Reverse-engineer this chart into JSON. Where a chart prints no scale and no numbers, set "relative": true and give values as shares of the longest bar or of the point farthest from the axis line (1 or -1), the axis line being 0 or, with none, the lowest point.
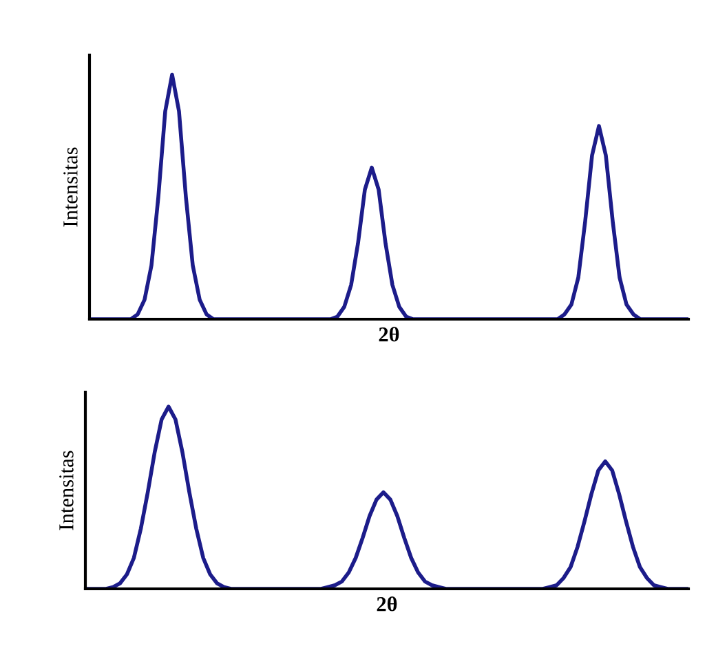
{
  "chart_data": [
    {
      "type": "line",
      "relative": true,
      "xlabel": "2θ",
      "ylabel": "Intensitas",
      "tick_labels": false,
      "grid": false,
      "legend": false,
      "marker": "none",
      "line_style": "solid",
      "categories": [
        null,
        null,
        null,
        null,
        null,
        null,
        null,
        null,
        null,
        null,
        null,
        null,
        null,
        null,
        null,
        null,
        null,
        null,
        null,
        null,
        null,
        null,
        null,
        null,
        null,
        null,
        null,
        null,
        null,
        null,
        null,
        null,
        null,
        null,
        null,
        null,
        null,
        null,
        null,
        null,
        null,
        null,
        null,
        null,
        null,
        null,
        null,
        null,
        null,
        null,
        null,
        null,
        null,
        null,
        null,
        null,
        null,
        null,
        null,
        null,
        null,
        null,
        null,
        null,
        null,
        null,
        null,
        null,
        null,
        null,
        null,
        null,
        null,
        null,
        null,
        null,
        null,
        null,
        null,
        null,
        null,
        null,
        null,
        null,
        null,
        null,
        null,
        null
      ],
      "series": [
        {
          "color": "#1c1c8a",
          "values": [
            0,
            0,
            0,
            0,
            0,
            0,
            0,
            0.02,
            0.08,
            0.22,
            0.5,
            0.85,
            1,
            0.85,
            0.5,
            0.22,
            0.08,
            0.02,
            0,
            0,
            0,
            0,
            0,
            0,
            0,
            0,
            0,
            0,
            0,
            0,
            0,
            0,
            0,
            0,
            0,
            0,
            0.01,
            0.05,
            0.14,
            0.31,
            0.53,
            0.62,
            0.53,
            0.31,
            0.14,
            0.05,
            0.01,
            0,
            0,
            0,
            0,
            0,
            0,
            0,
            0,
            0,
            0,
            0,
            0,
            0,
            0,
            0,
            0,
            0,
            0,
            0,
            0,
            0,
            0,
            0.02,
            0.06,
            0.17,
            0.4,
            0.67,
            0.79,
            0.67,
            0.4,
            0.17,
            0.06,
            0.02,
            0,
            0,
            0,
            0,
            0,
            0,
            0,
            0
          ]
        }
      ]
    },
    {
      "type": "line",
      "relative": true,
      "xlabel": "2θ",
      "ylabel": "Intensitas",
      "tick_labels": false,
      "grid": false,
      "legend": false,
      "marker": "none",
      "line_style": "solid",
      "categories": [
        null,
        null,
        null,
        null,
        null,
        null,
        null,
        null,
        null,
        null,
        null,
        null,
        null,
        null,
        null,
        null,
        null,
        null,
        null,
        null,
        null,
        null,
        null,
        null,
        null,
        null,
        null,
        null,
        null,
        null,
        null,
        null,
        null,
        null,
        null,
        null,
        null,
        null,
        null,
        null,
        null,
        null,
        null,
        null,
        null,
        null,
        null,
        null,
        null,
        null,
        null,
        null,
        null,
        null,
        null,
        null,
        null,
        null,
        null,
        null,
        null,
        null,
        null,
        null,
        null,
        null,
        null,
        null,
        null,
        null,
        null,
        null,
        null,
        null,
        null,
        null,
        null,
        null,
        null,
        null,
        null,
        null,
        null,
        null,
        null,
        null,
        null,
        null
      ],
      "series": [
        {
          "color": "#1c1c8a",
          "values": [
            0,
            0,
            0,
            0,
            0.01,
            0.03,
            0.08,
            0.17,
            0.33,
            0.53,
            0.75,
            0.93,
            1,
            0.93,
            0.75,
            0.53,
            0.33,
            0.17,
            0.08,
            0.03,
            0.01,
            0,
            0,
            0,
            0,
            0,
            0,
            0,
            0,
            0,
            0,
            0,
            0,
            0,
            0,
            0.01,
            0.02,
            0.04,
            0.09,
            0.17,
            0.28,
            0.4,
            0.49,
            0.53,
            0.49,
            0.4,
            0.28,
            0.17,
            0.09,
            0.04,
            0.02,
            0.01,
            0,
            0,
            0,
            0,
            0,
            0,
            0,
            0,
            0,
            0,
            0,
            0,
            0,
            0,
            0,
            0.01,
            0.02,
            0.06,
            0.12,
            0.23,
            0.37,
            0.52,
            0.65,
            0.7,
            0.65,
            0.52,
            0.37,
            0.23,
            0.12,
            0.06,
            0.02,
            0.01,
            0,
            0,
            0,
            0
          ]
        }
      ]
    }
  ]
}
